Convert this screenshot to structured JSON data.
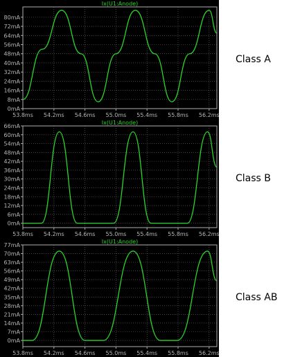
{
  "chart_data": [
    {
      "type": "line",
      "title": "Ix(U1:Anode)",
      "side_label": "Class A",
      "xlim": [
        53.8,
        56.3
      ],
      "ylim": [
        0,
        89
      ],
      "x_ticks": [
        "53.8ms",
        "54.2ms",
        "54.6ms",
        "55.0ms",
        "55.4ms",
        "55.8ms",
        "56.2ms"
      ],
      "y_ticks": [
        "0mA",
        "8mA",
        "16mA",
        "24mA",
        "32mA",
        "40mA",
        "48mA",
        "56mA",
        "64mA",
        "72mA",
        "80mA"
      ],
      "series": [
        {
          "color": "#2bd62b",
          "points": [
            [
              53.8,
              8
            ],
            [
              54.05,
              52
            ],
            [
              54.3,
              86
            ],
            [
              54.55,
              48
            ],
            [
              54.77,
              6
            ],
            [
              55.0,
              48
            ],
            [
              55.25,
              86
            ],
            [
              55.5,
              48
            ],
            [
              55.72,
              6
            ],
            [
              55.95,
              48
            ],
            [
              56.2,
              86
            ],
            [
              56.3,
              66
            ]
          ]
        }
      ]
    },
    {
      "type": "line",
      "title": "Ix(U1:Anode)",
      "side_label": "Class B",
      "xlim": [
        53.8,
        56.3
      ],
      "ylim": [
        -3,
        66
      ],
      "x_ticks": [
        "53.8ms",
        "54.2ms",
        "54.6ms",
        "55.0ms",
        "55.4ms",
        "55.8ms",
        "56.2ms"
      ],
      "y_ticks": [
        "0mA",
        "6mA",
        "12mA",
        "18mA",
        "24mA",
        "30mA",
        "36mA",
        "42mA",
        "48mA",
        "54mA",
        "60mA",
        "66mA"
      ],
      "series": [
        {
          "color": "#2bd62b",
          "points": [
            [
              53.8,
              0
            ],
            [
              54.04,
              0
            ],
            [
              54.27,
              62
            ],
            [
              54.5,
              0
            ],
            [
              54.97,
              0
            ],
            [
              55.22,
              62
            ],
            [
              55.45,
              0
            ],
            [
              55.92,
              0
            ],
            [
              56.18,
              62
            ],
            [
              56.3,
              38
            ]
          ]
        }
      ]
    },
    {
      "type": "line",
      "title": "Ix(U1:Anode)",
      "side_label": "Class AB",
      "xlim": [
        53.8,
        56.3
      ],
      "ylim": [
        -5,
        77
      ],
      "x_ticks": [
        "53.8ms",
        "54.2ms",
        "54.6ms",
        "55.0ms",
        "55.4ms",
        "55.8ms",
        "56.2ms"
      ],
      "y_ticks": [
        "0mA",
        "7mA",
        "14mA",
        "21mA",
        "28mA",
        "35mA",
        "42mA",
        "49mA",
        "56mA",
        "63mA",
        "70mA",
        "77mA"
      ],
      "series": [
        {
          "color": "#2bd62b",
          "points": [
            [
              53.8,
              0
            ],
            [
              53.92,
              0
            ],
            [
              54.27,
              72
            ],
            [
              54.6,
              0
            ],
            [
              54.84,
              0
            ],
            [
              55.22,
              72
            ],
            [
              55.57,
              0
            ],
            [
              55.79,
              0
            ],
            [
              56.18,
              72
            ],
            [
              56.3,
              48
            ]
          ]
        }
      ]
    }
  ]
}
